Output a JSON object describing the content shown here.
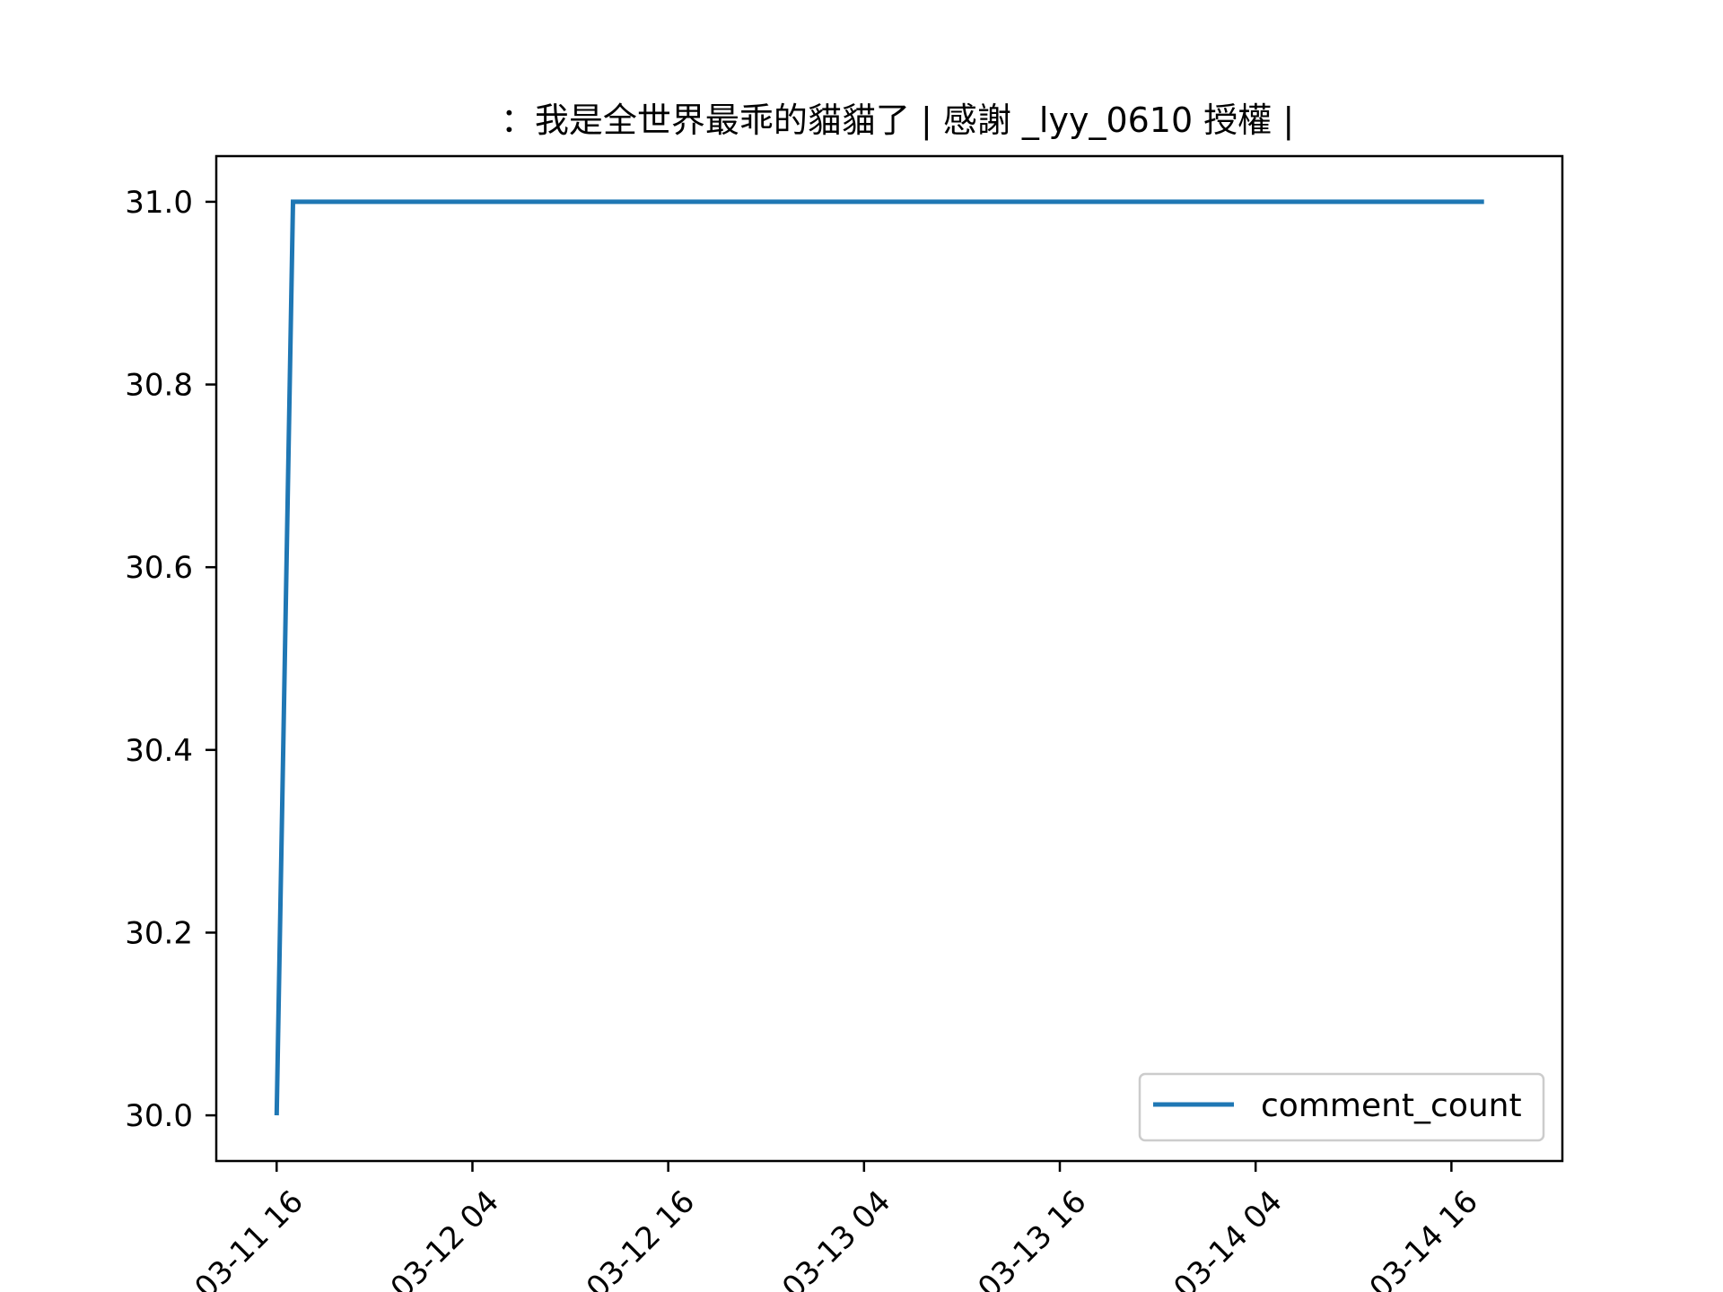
{
  "chart_data": {
    "type": "line",
    "title": "：我是全世界最乖的貓貓了 | 感謝 _lyy_0610 授權 |",
    "xlabel": "",
    "ylabel": "",
    "x_tick_labels": [
      "03-11 16",
      "03-12 04",
      "03-12 16",
      "03-13 04",
      "03-13 16",
      "03-14 04",
      "03-14 16"
    ],
    "x_tick_hours": [
      0,
      12,
      24,
      36,
      48,
      60,
      72
    ],
    "xlim_hours": [
      -3.7,
      78.8
    ],
    "y_tick_labels": [
      "30.0",
      "30.2",
      "30.4",
      "30.6",
      "30.8",
      "31.0"
    ],
    "y_tick_values": [
      30.0,
      30.2,
      30.4,
      30.6,
      30.8,
      31.0
    ],
    "ylim": [
      29.95,
      31.05
    ],
    "grid": false,
    "legend_position": "lower-right",
    "series": [
      {
        "name": "comment_count",
        "color": "#1f77b4",
        "x_hours": [
          0,
          1,
          74
        ],
        "values": [
          30,
          31,
          31
        ]
      }
    ]
  }
}
